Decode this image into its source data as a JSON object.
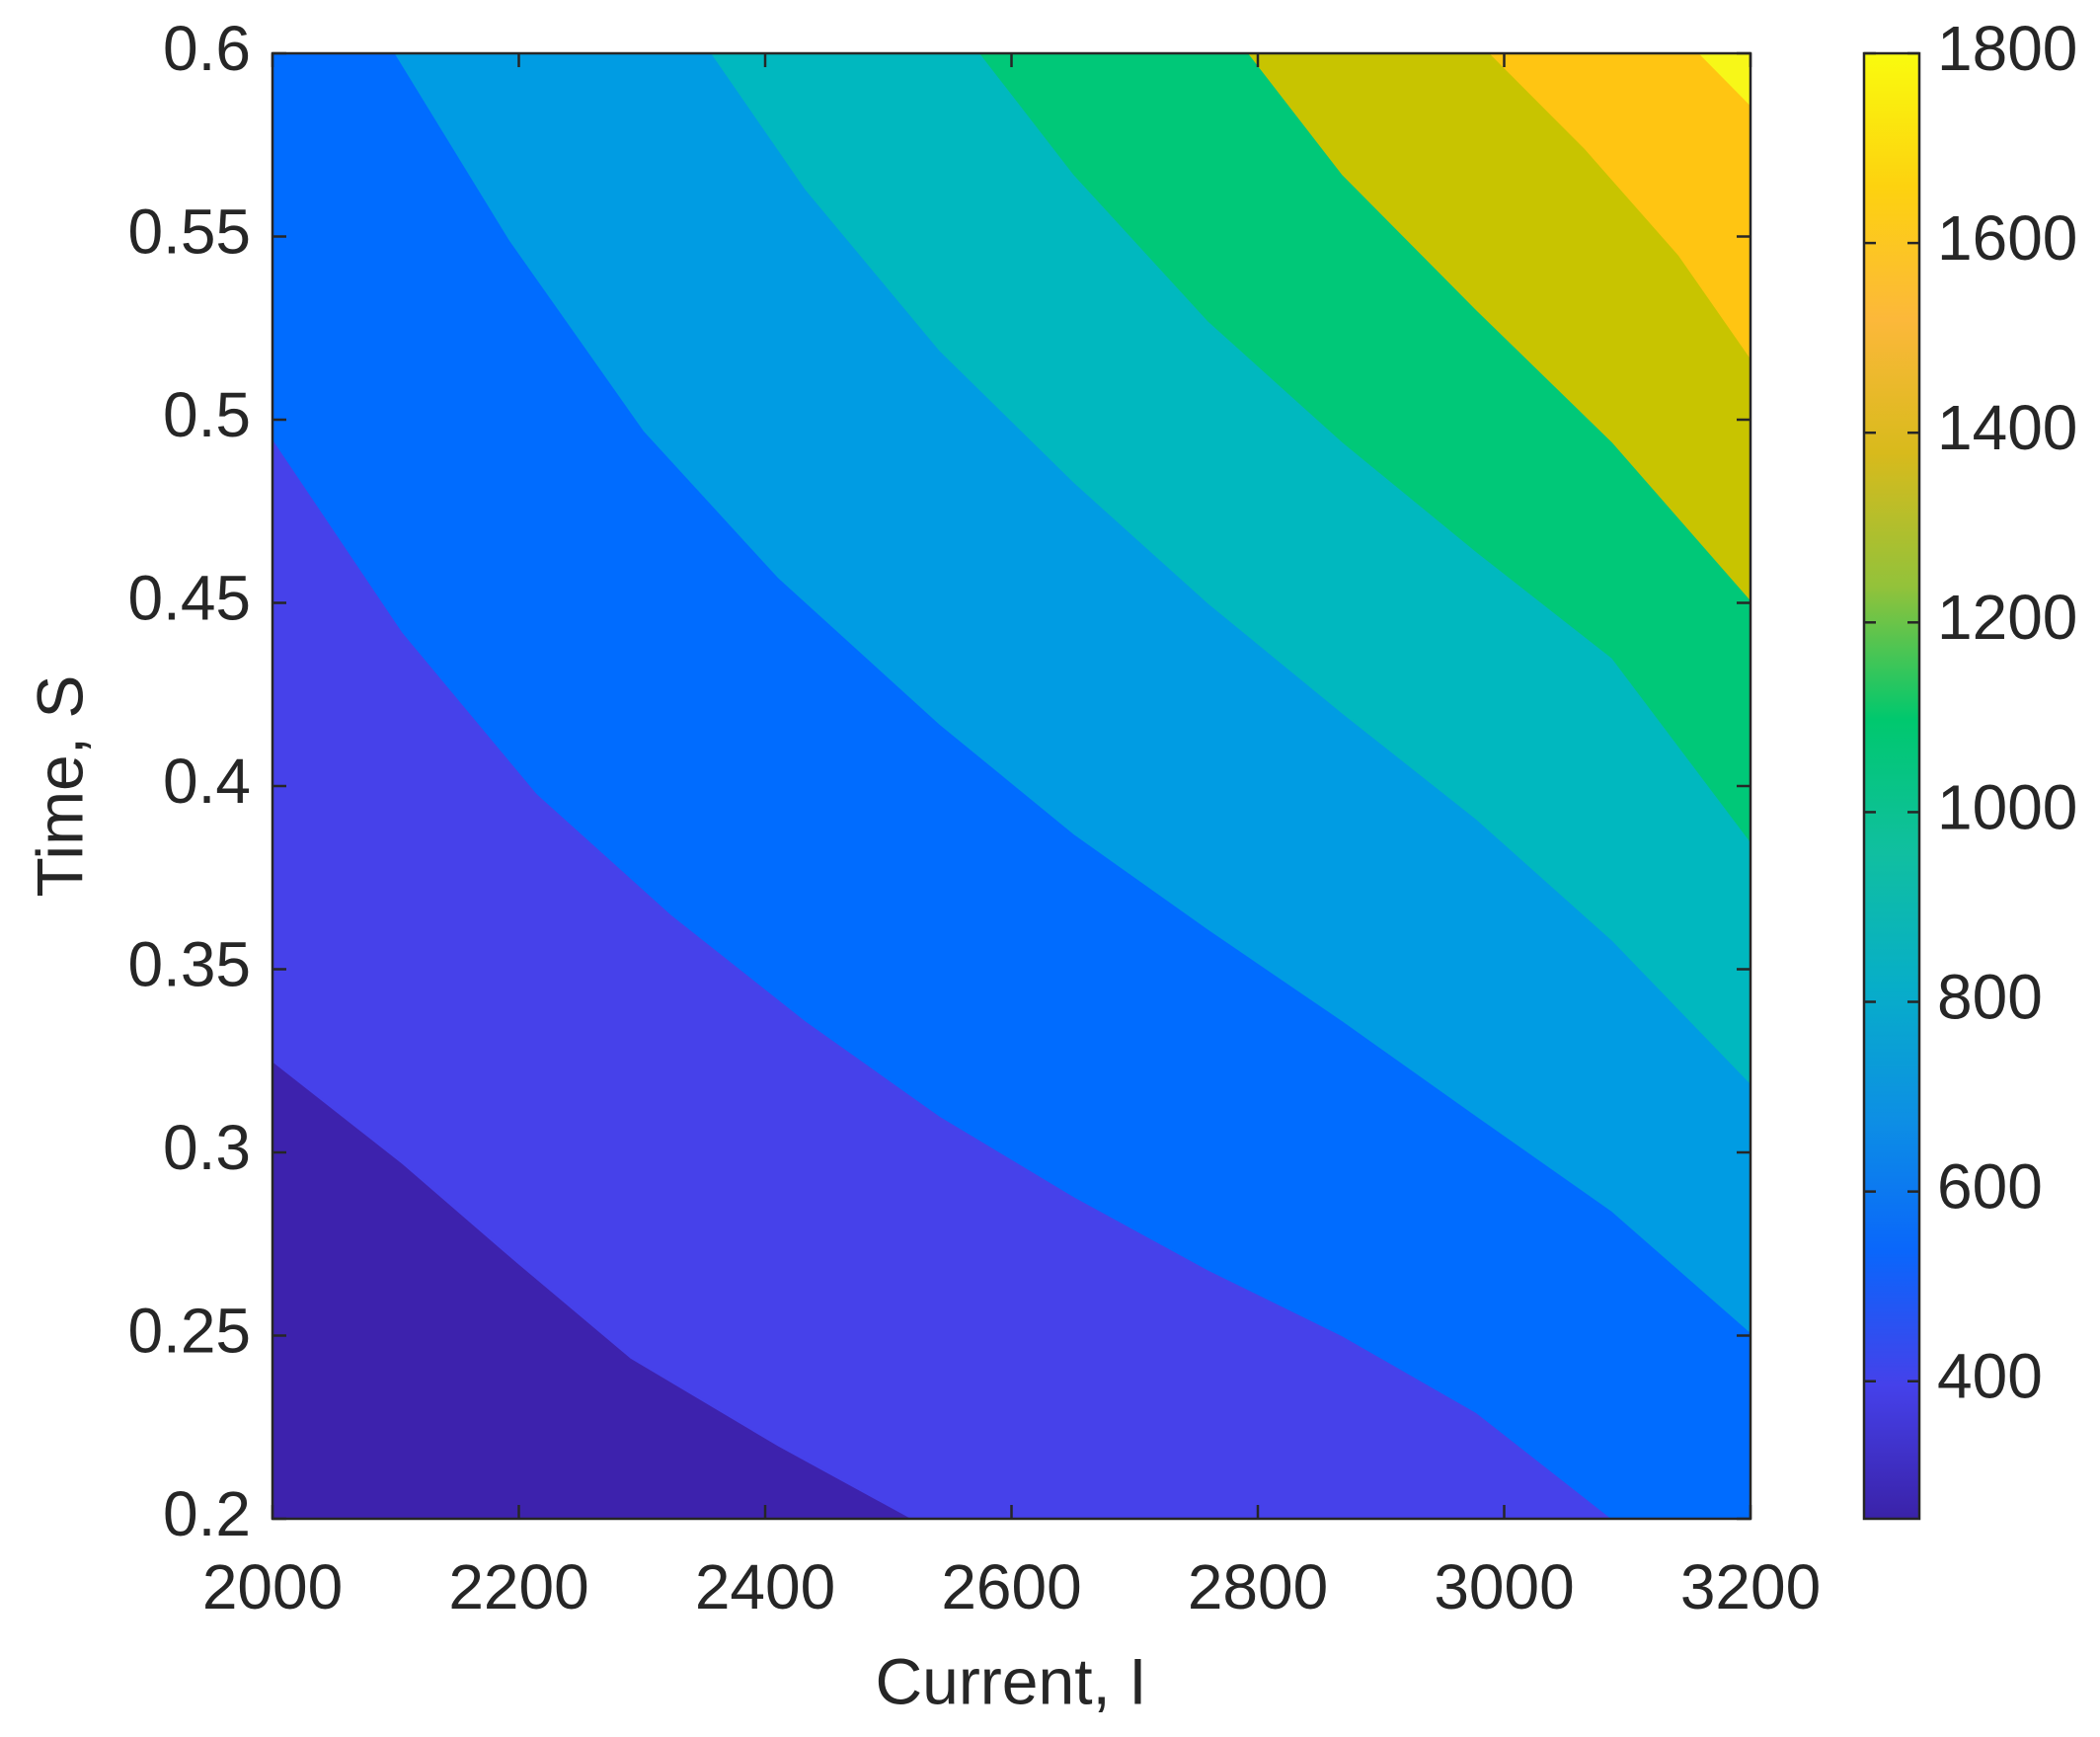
{
  "chart_data": {
    "type": "contourf",
    "xlabel": "Current, I",
    "ylabel": "Time, S",
    "xlim": [
      2000,
      3200
    ],
    "xticks": [
      2000,
      2200,
      2400,
      2600,
      2800,
      3000,
      3200
    ],
    "ylim": [
      0.2,
      0.6
    ],
    "yticks": [
      0.2,
      0.25,
      0.3,
      0.35,
      0.4,
      0.45,
      0.5,
      0.55,
      0.6
    ],
    "band_colors": [
      "#3d22ad",
      "#4641ea",
      "#006cff",
      "#009ce3",
      "#00b8bf",
      "#00c878",
      "#c8c400",
      "#ffc512",
      "#f7f718"
    ],
    "contours": [
      {
        "level": 400,
        "x": [
          2000,
          2106,
          2199,
          2291,
          2411,
          2520
        ],
        "y": [
          0.325,
          0.297,
          0.27,
          0.244,
          0.22,
          0.2
        ]
      },
      {
        "level": 600,
        "x": [
          2000,
          2106,
          2215,
          2324,
          2433,
          2542,
          2651,
          2760,
          2869,
          2978,
          3088
        ],
        "y": [
          0.495,
          0.442,
          0.398,
          0.365,
          0.336,
          0.31,
          0.288,
          0.268,
          0.25,
          0.229,
          0.2
        ]
      },
      {
        "level": 800,
        "x": [
          2100,
          2193,
          2302,
          2411,
          2542,
          2651,
          2760,
          2869,
          2978,
          3088,
          3200
        ],
        "y": [
          0.6,
          0.549,
          0.497,
          0.457,
          0.417,
          0.387,
          0.361,
          0.336,
          0.31,
          0.284,
          0.251
        ]
      },
      {
        "level": 1000,
        "x": [
          2357,
          2433,
          2542,
          2651,
          2760,
          2869,
          2978,
          3088,
          3200
        ],
        "y": [
          0.6,
          0.563,
          0.519,
          0.483,
          0.45,
          0.42,
          0.391,
          0.358,
          0.319
        ]
      },
      {
        "level": 1200,
        "x": [
          2575,
          2651,
          2760,
          2869,
          2978,
          3088,
          3200
        ],
        "y": [
          0.6,
          0.567,
          0.527,
          0.494,
          0.464,
          0.435,
          0.385
        ]
      },
      {
        "level": 1400,
        "x": [
          2793,
          2869,
          2978,
          3088,
          3200
        ],
        "y": [
          0.6,
          0.567,
          0.53,
          0.494,
          0.451
        ]
      },
      {
        "level": 1600,
        "x": [
          2989,
          3066,
          3142,
          3200
        ],
        "y": [
          0.6,
          0.574,
          0.545,
          0.517
        ]
      },
      {
        "level": 1800,
        "x": [
          3159,
          3200
        ],
        "y": [
          0.6,
          0.586
        ]
      }
    ],
    "colorbar": {
      "clim": [
        255,
        1800
      ],
      "ticks": [
        400,
        600,
        800,
        1000,
        1200,
        1400,
        1600,
        1800
      ],
      "colormap": [
        "#3a22a8",
        "#4541ea",
        "#0a66fb",
        "#0d8fe4",
        "#07aec8",
        "#10bfa0",
        "#00c86e",
        "#93c23a",
        "#d8ba1c",
        "#fcb83a",
        "#fdd20f",
        "#f9fb0e"
      ]
    }
  }
}
